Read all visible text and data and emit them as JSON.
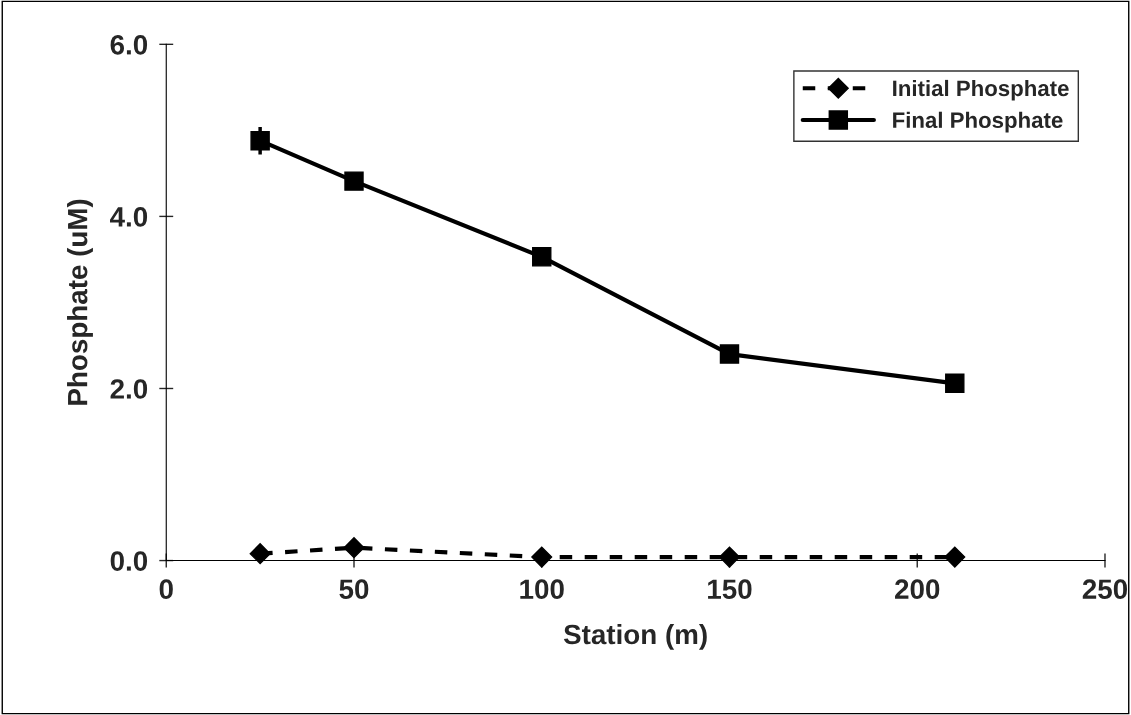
{
  "chart_data": {
    "type": "line",
    "xlabel": "Station (m)",
    "ylabel": "Phosphate (uM)",
    "x": [
      25,
      50,
      100,
      150,
      210
    ],
    "series": [
      {
        "name": "Initial Phosphate",
        "color": "#000000",
        "marker": "diamond",
        "line_style": "dashed",
        "values": [
          0.08,
          0.15,
          0.04,
          0.04,
          0.04
        ]
      },
      {
        "name": "Final Phosphate",
        "color": "#000000",
        "marker": "square",
        "line_style": "solid",
        "values": [
          4.88,
          4.41,
          3.53,
          2.4,
          2.06
        ],
        "errors": [
          0.16,
          null,
          null,
          null,
          null
        ]
      }
    ],
    "xlim": [
      0,
      250
    ],
    "xticks": [
      0,
      50,
      100,
      150,
      200,
      250
    ],
    "ylim": [
      0,
      6
    ],
    "yticks": [
      {
        "value": 0,
        "label": "0.0"
      },
      {
        "value": 2,
        "label": "2.0"
      },
      {
        "value": 4,
        "label": "4.0"
      },
      {
        "value": 6,
        "label": "6.0"
      }
    ],
    "grid": false,
    "legend": "top right"
  }
}
